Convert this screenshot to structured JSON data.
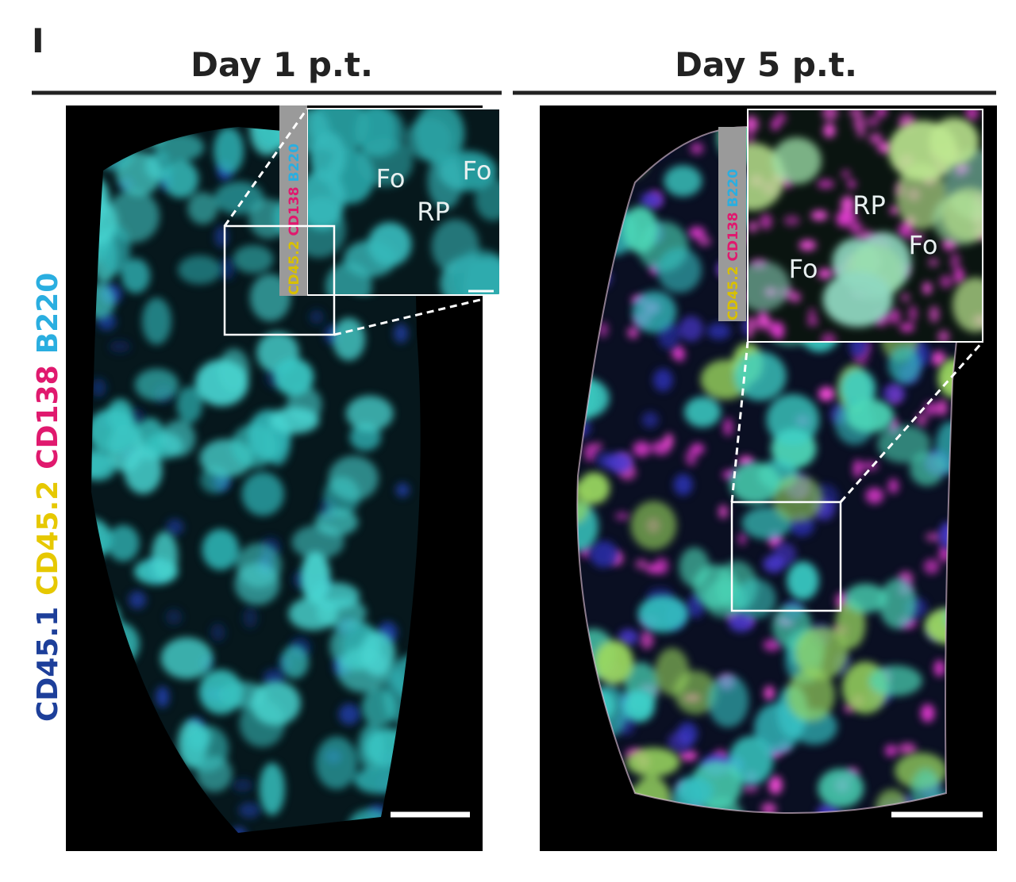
{
  "panel_label": "I",
  "marker_legend": [
    {
      "text": "CD45.1",
      "color": "#1d3f9a"
    },
    {
      "text": "CD45.2",
      "color": "#e6c800"
    },
    {
      "text": "CD138",
      "color": "#e0196e"
    },
    {
      "text": "B220",
      "color": "#2aaee0"
    }
  ],
  "panels": [
    {
      "title": "Day 1 p.t.",
      "inset_markers": [
        {
          "text": "CD45.2",
          "color": "#d8c000"
        },
        {
          "text": "CD138",
          "color": "#e0196e"
        },
        {
          "text": "B220",
          "color": "#2aaee0"
        }
      ],
      "inset_labels": [
        "Fo",
        "Fo",
        "RP"
      ]
    },
    {
      "title": "Day 5 p.t.",
      "inset_markers": [
        {
          "text": "CD45.2",
          "color": "#d8c000"
        },
        {
          "text": "CD138",
          "color": "#e0196e"
        },
        {
          "text": "B220",
          "color": "#2aaee0"
        }
      ],
      "inset_labels": [
        "Fo",
        "Fo",
        "RP"
      ]
    }
  ]
}
